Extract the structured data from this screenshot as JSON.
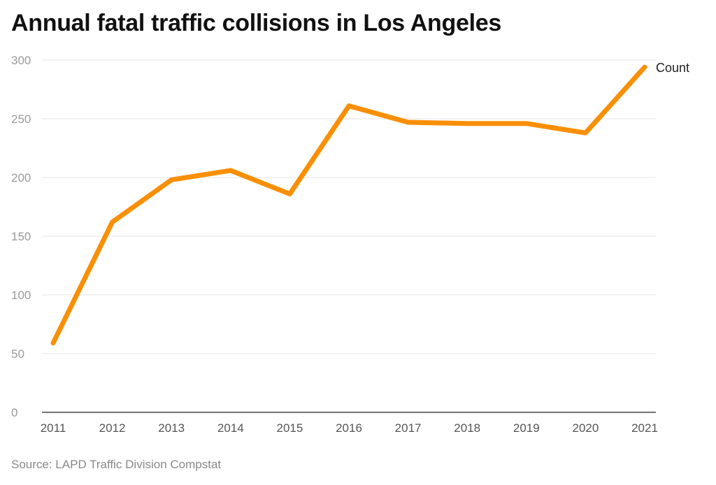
{
  "title": "Annual fatal traffic collisions in Los Angeles",
  "source": "Source: LAPD Traffic Division Compstat",
  "colors": {
    "line": "#F98F05",
    "grid": "#e6e6e6",
    "axis": "#222222"
  },
  "chart_data": {
    "type": "line",
    "title": "Annual fatal traffic collisions in Los Angeles",
    "xlabel": "",
    "ylabel": "",
    "categories": [
      "2011",
      "2012",
      "2013",
      "2014",
      "2015",
      "2016",
      "2017",
      "2018",
      "2019",
      "2020",
      "2021"
    ],
    "series": [
      {
        "name": "Count",
        "values": [
          59,
          162,
          198,
          206,
          186,
          261,
          247,
          246,
          246,
          238,
          294
        ]
      }
    ],
    "ylim": [
      0,
      300
    ],
    "yticks": [
      0,
      50,
      100,
      150,
      200,
      250,
      300
    ],
    "grid": true,
    "legend": "inline label at line end"
  }
}
